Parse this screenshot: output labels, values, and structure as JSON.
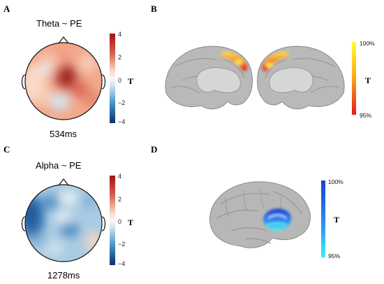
{
  "panels": {
    "A": {
      "letter": "A",
      "title": "Theta ~ PE",
      "time": "534ms",
      "colorbar": {
        "ticks": [
          "4",
          "2",
          "0",
          "−2",
          "−4"
        ],
        "label": "T"
      }
    },
    "B": {
      "letter": "B",
      "colorbar": {
        "top": "100%",
        "bottom": "95%",
        "label": "T"
      }
    },
    "C": {
      "letter": "C",
      "title": "Alpha ~ PE",
      "time": "1278ms",
      "colorbar": {
        "ticks": [
          "4",
          "2",
          "0",
          "−2",
          "−4"
        ],
        "label": "T"
      }
    },
    "D": {
      "letter": "D",
      "colorbar": {
        "top": "100%",
        "bottom": "95%",
        "label": "T"
      }
    }
  },
  "colors": {
    "diverging_pos": "#a50f15",
    "diverging_neg": "#08306b",
    "hot_top": "#ffff33",
    "hot_bottom": "#e31a1c",
    "cool_top": "#1d3fcf",
    "cool_bottom": "#3ff0f5"
  }
}
